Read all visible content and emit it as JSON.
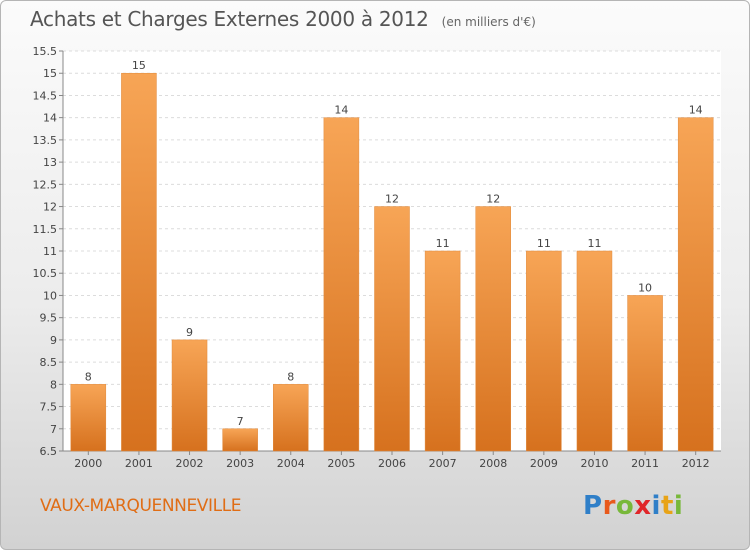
{
  "chart_data": {
    "type": "bar",
    "title": "Achats et Charges Externes 2000 à 2012",
    "unit": "(en milliers d'€)",
    "categories": [
      "2000",
      "2001",
      "2002",
      "2003",
      "2004",
      "2005",
      "2006",
      "2007",
      "2008",
      "2009",
      "2010",
      "2011",
      "2012"
    ],
    "values": [
      8,
      15,
      9,
      7,
      8,
      14,
      12,
      11,
      12,
      11,
      11,
      10,
      14
    ],
    "ylim": [
      6.5,
      15.5
    ],
    "yticks": [
      "6.5",
      "7",
      "7.5",
      "8",
      "8.5",
      "9",
      "9.5",
      "10",
      "10.5",
      "11",
      "11.5",
      "12",
      "12.5",
      "13",
      "13.5",
      "14",
      "14.5",
      "15",
      "15.5"
    ],
    "grid": true,
    "bar_color": "#f0913a"
  },
  "commune": "VAUX-MARQUENNEVILLE",
  "logo": {
    "text": "Proxiti",
    "letter_colors": [
      "#2f7fc8",
      "#e8591c",
      "#78b83a",
      "#e0262a",
      "#2f7fc8",
      "#e8a317",
      "#78b83a"
    ]
  }
}
